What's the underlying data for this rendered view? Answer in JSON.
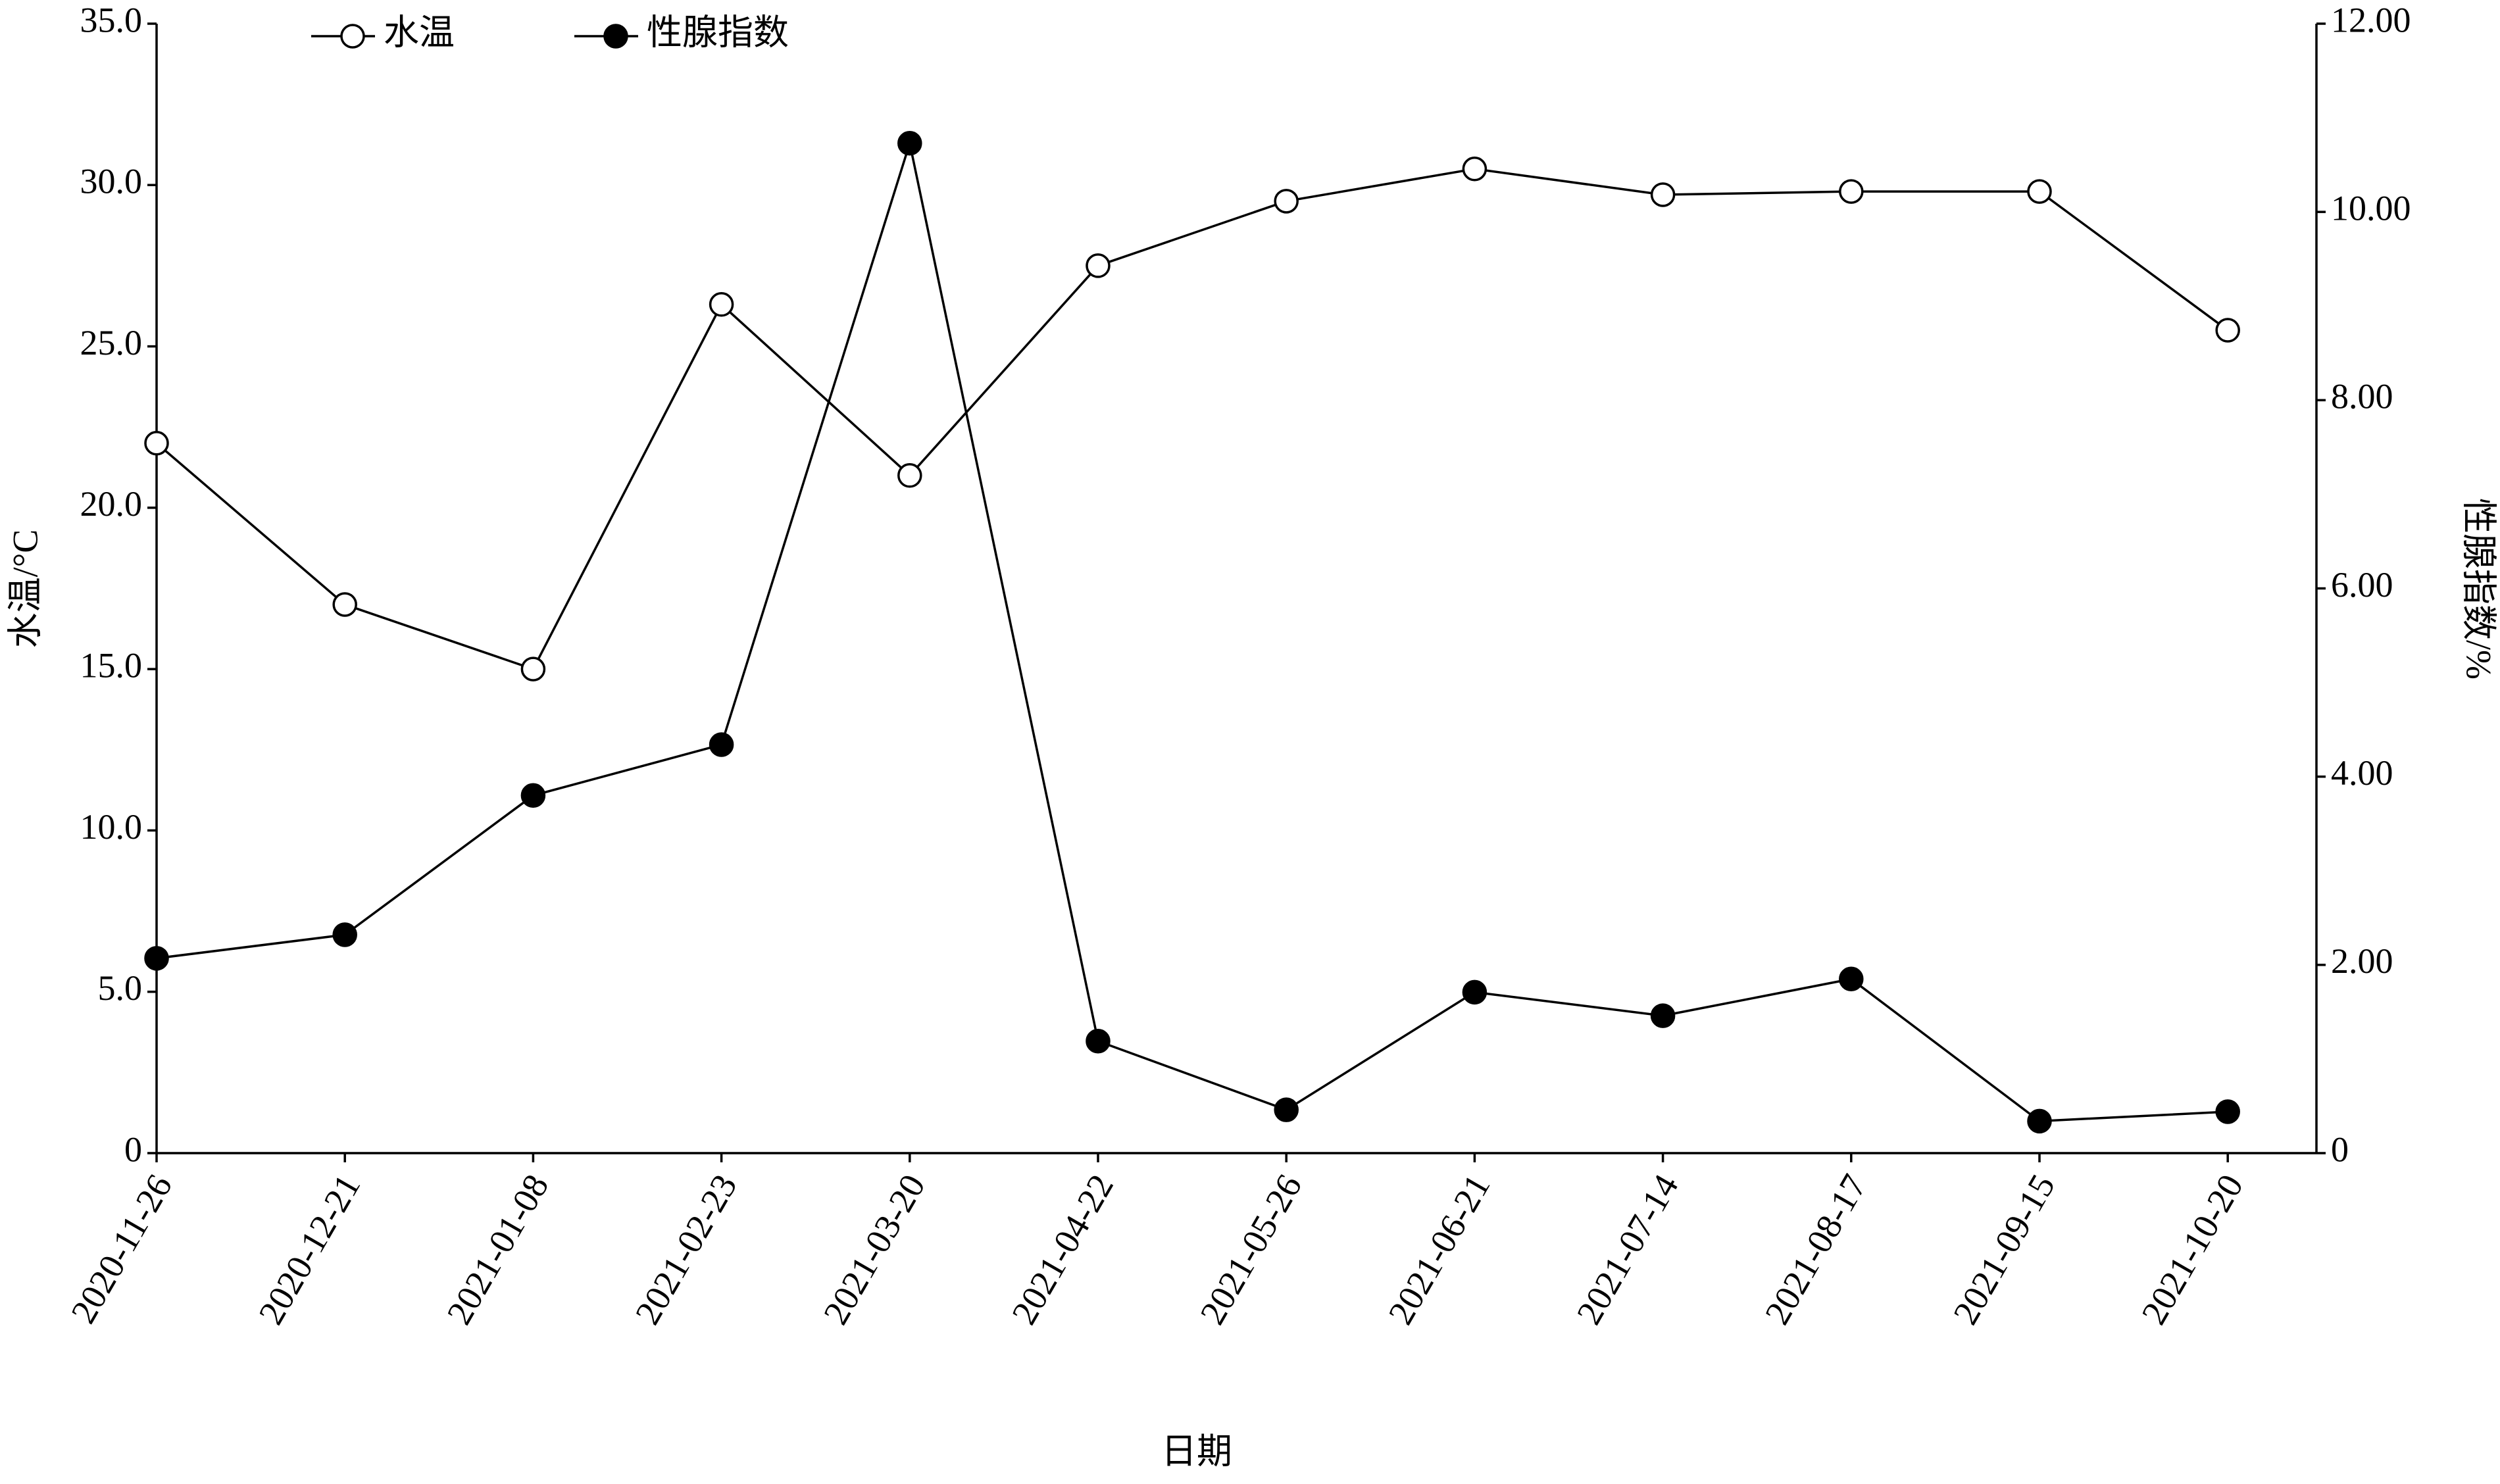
{
  "chart_data": {
    "type": "line",
    "x_label": "日期",
    "y_label": "水温/°C",
    "y2_label": "性腺指数/%",
    "categories": [
      "2020-11-26",
      "2020-12-21",
      "2021-01-08",
      "2021-02-23",
      "2021-03-20",
      "2021-04-22",
      "2021-05-26",
      "2021-06-21",
      "2021-07-14",
      "2021-08-17",
      "2021-09-15",
      "2021-10-20"
    ],
    "series": [
      {
        "name": "水温",
        "color": "#000000",
        "marker": "open",
        "values": [
          22.0,
          17.0,
          15.0,
          26.3,
          21.0,
          27.5,
          29.5,
          30.5,
          29.7,
          29.8,
          29.8,
          25.5
        ]
      },
      {
        "name": "性腺指数",
        "color": "#000000",
        "marker": "filled",
        "axis": "y2",
        "values": [
          2.07,
          2.32,
          3.8,
          4.34,
          10.73,
          1.19,
          0.46,
          1.71,
          1.46,
          1.85,
          0.34,
          0.44
        ]
      }
    ],
    "ylim": [
      0,
      35
    ],
    "yticks": [
      0,
      {
        "value": 5,
        "label": "5.0"
      },
      {
        "value": 10,
        "label": "10.0"
      },
      {
        "value": 15,
        "label": "15.0"
      },
      {
        "value": 20,
        "label": "20.0"
      },
      {
        "value": 25,
        "label": "25.0"
      },
      {
        "value": 30,
        "label": "30.0"
      },
      {
        "value": 35,
        "label": "35.0"
      }
    ],
    "y2lim": [
      0,
      12
    ],
    "y2ticks": [
      0,
      {
        "value": 2,
        "label": "2.00"
      },
      {
        "value": 4,
        "label": "4.00"
      },
      {
        "value": 6,
        "label": "6.00"
      },
      {
        "value": 8,
        "label": "8.00"
      },
      {
        "value": 10,
        "label": "10.00"
      },
      {
        "value": 12,
        "label": "12.00"
      }
    ],
    "grid": false,
    "legend": "top-left"
  }
}
